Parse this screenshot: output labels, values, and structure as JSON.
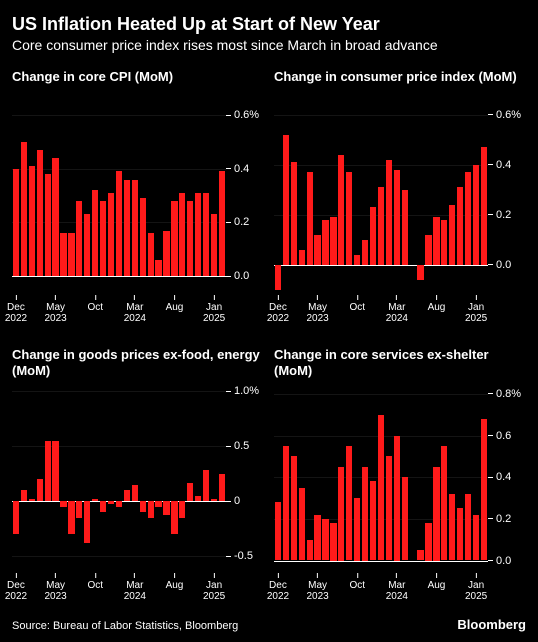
{
  "title": "US Inflation Heated Up at Start of New Year",
  "subtitle": "Core consumer price index rises most since March in broad advance",
  "source": "Source: Bureau of Labor Statistics, Bloomberg",
  "brand": "Bloomberg",
  "colors": {
    "background": "#000000",
    "text": "#ffffff",
    "bar": "#ff1a1a",
    "axis": "#ffffff"
  },
  "font": {
    "title_size": 18,
    "subtitle_size": 14,
    "panel_title_size": 13,
    "tick_size": 11
  },
  "xticks": [
    {
      "pos": 0.5,
      "label": "Dec",
      "label2": "2022"
    },
    {
      "pos": 5.5,
      "label": "May",
      "label2": "2023"
    },
    {
      "pos": 10.5,
      "label": "Oct",
      "label2": ""
    },
    {
      "pos": 15.5,
      "label": "Mar",
      "label2": "2024"
    },
    {
      "pos": 20.5,
      "label": "Aug",
      "label2": ""
    },
    {
      "pos": 25.5,
      "label": "Jan",
      "label2": "2025"
    }
  ],
  "n_bars": 27,
  "panels": [
    {
      "id": "core-cpi",
      "title": "Change in core CPI (MoM)",
      "ymin": -0.07,
      "ymax": 0.63,
      "yticks": [
        {
          "v": 0.0,
          "label": "0.0"
        },
        {
          "v": 0.2,
          "label": "0.2"
        },
        {
          "v": 0.4,
          "label": "0.4"
        },
        {
          "v": 0.6,
          "label": "0.6%"
        }
      ],
      "values": [
        0.4,
        0.5,
        0.41,
        0.47,
        0.38,
        0.44,
        0.16,
        0.16,
        0.28,
        0.23,
        0.32,
        0.28,
        0.31,
        0.39,
        0.36,
        0.36,
        0.29,
        0.16,
        0.06,
        0.17,
        0.28,
        0.31,
        0.28,
        0.31,
        0.31,
        0.23,
        0.39
      ]
    },
    {
      "id": "cpi",
      "title": "Change in consumer price index (MoM)",
      "ymin": -0.12,
      "ymax": 0.63,
      "yticks": [
        {
          "v": 0.0,
          "label": "0.0"
        },
        {
          "v": 0.2,
          "label": "0.2"
        },
        {
          "v": 0.4,
          "label": "0.4"
        },
        {
          "v": 0.6,
          "label": "0.6%"
        }
      ],
      "values": [
        -0.1,
        0.52,
        0.41,
        0.06,
        0.37,
        0.12,
        0.18,
        0.19,
        0.44,
        0.37,
        0.04,
        0.1,
        0.23,
        0.31,
        0.42,
        0.38,
        0.3,
        0.0,
        -0.06,
        0.12,
        0.19,
        0.18,
        0.24,
        0.31,
        0.37,
        0.4,
        0.47
      ]
    },
    {
      "id": "goods",
      "title": "Change in goods prices ex-food, energy (MoM)",
      "ymin": -0.65,
      "ymax": 1.05,
      "yticks": [
        {
          "v": -0.5,
          "label": "-0.5"
        },
        {
          "v": 0.0,
          "label": "0"
        },
        {
          "v": 0.5,
          "label": "0.5"
        },
        {
          "v": 1.0,
          "label": "1.0%"
        }
      ],
      "values": [
        -0.3,
        0.1,
        0.02,
        0.2,
        0.55,
        0.55,
        -0.05,
        -0.3,
        -0.15,
        -0.38,
        0.02,
        -0.1,
        -0.02,
        -0.05,
        0.1,
        0.15,
        -0.1,
        -0.15,
        -0.05,
        -0.12,
        -0.3,
        -0.15,
        0.17,
        0.05,
        0.28,
        0.02,
        0.25
      ]
    },
    {
      "id": "services",
      "title": "Change in core services ex-shelter (MoM)",
      "ymin": -0.06,
      "ymax": 0.84,
      "yticks": [
        {
          "v": 0.0,
          "label": "0.0"
        },
        {
          "v": 0.2,
          "label": "0.2"
        },
        {
          "v": 0.4,
          "label": "0.4"
        },
        {
          "v": 0.6,
          "label": "0.6"
        },
        {
          "v": 0.8,
          "label": "0.8%"
        }
      ],
      "values": [
        0.28,
        0.55,
        0.5,
        0.35,
        0.1,
        0.22,
        0.2,
        0.18,
        0.45,
        0.55,
        0.3,
        0.45,
        0.38,
        0.7,
        0.5,
        0.6,
        0.4,
        0.0,
        0.05,
        0.18,
        0.45,
        0.55,
        0.32,
        0.25,
        0.32,
        0.22,
        0.68
      ]
    }
  ]
}
